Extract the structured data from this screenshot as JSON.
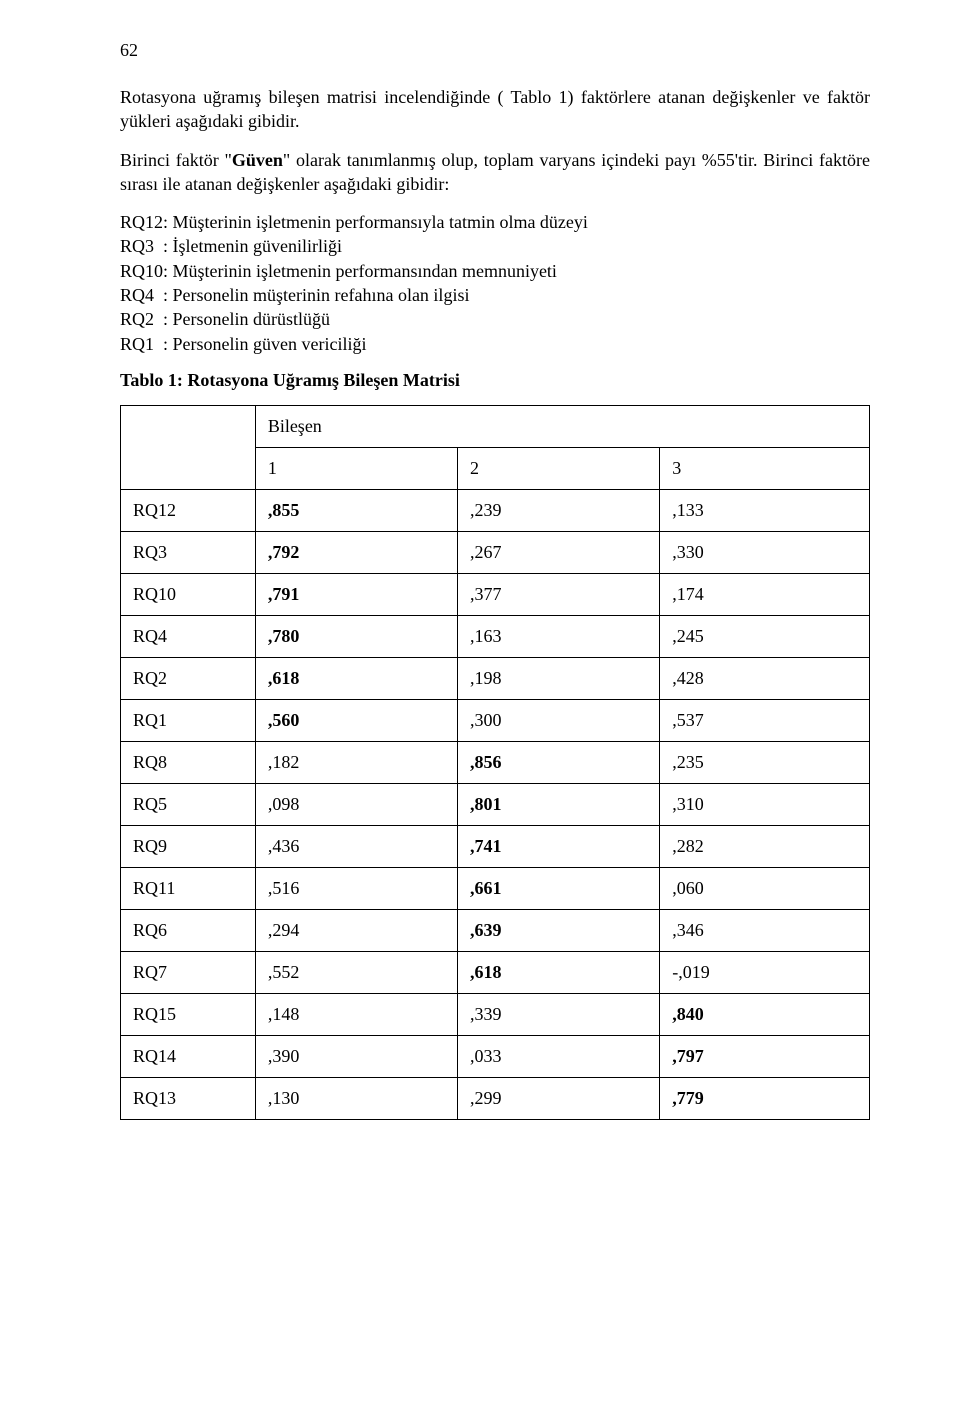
{
  "page_number": "62",
  "para1": "Rotasyona uğramış bileşen matrisi incelendiğinde ( Tablo 1) faktörlere atanan değişkenler ve faktör yükleri aşağıdaki gibidir.",
  "para2_pre": "Birinci faktör \"",
  "para2_bold": "Güven",
  "para2_post": "\" olarak tanımlanmış olup,  toplam varyans içindeki payı %55'tir. Birinci faktöre sırası ile atanan değişkenler aşağıdaki gibidir:",
  "list": {
    "l1": "RQ12: Müşterinin işletmenin performansıyla tatmin olma düzeyi",
    "l2": "RQ3  : İşletmenin güvenilirliği",
    "l3": "RQ10: Müşterinin işletmenin performansından memnuniyeti",
    "l4": "RQ4  : Personelin müşterinin refahına olan ilgisi",
    "l5": "RQ2  : Personelin dürüstlüğü",
    "l6": "RQ1  : Personelin güven vericiliği"
  },
  "table": {
    "title": "Tablo 1: Rotasyona Uğramış Bileşen Matrisi",
    "component_header": "Bileşen",
    "column_labels": [
      "1",
      "2",
      "3"
    ],
    "rows": [
      {
        "label": "RQ12",
        "v": [
          ",855",
          ",239",
          ",133"
        ]
      },
      {
        "label": "RQ3",
        "v": [
          ",792",
          ",267",
          ",330"
        ]
      },
      {
        "label": "RQ10",
        "v": [
          ",791",
          ",377",
          ",174"
        ]
      },
      {
        "label": "RQ4",
        "v": [
          ",780",
          ",163",
          ",245"
        ]
      },
      {
        "label": "RQ2",
        "v": [
          ",618",
          ",198",
          ",428"
        ]
      },
      {
        "label": "RQ1",
        "v": [
          ",560",
          ",300",
          ",537"
        ]
      },
      {
        "label": "RQ8",
        "v": [
          ",182",
          ",856",
          ",235"
        ]
      },
      {
        "label": "RQ5",
        "v": [
          ",098",
          ",801",
          ",310"
        ]
      },
      {
        "label": "RQ9",
        "v": [
          ",436",
          ",741",
          ",282"
        ]
      },
      {
        "label": "RQ11",
        "v": [
          ",516",
          ",661",
          ",060"
        ]
      },
      {
        "label": "RQ6",
        "v": [
          ",294",
          ",639",
          ",346"
        ]
      },
      {
        "label": "RQ7",
        "v": [
          ",552",
          ",618",
          "-,019"
        ]
      },
      {
        "label": "RQ15",
        "v": [
          ",148",
          ",339",
          ",840"
        ]
      },
      {
        "label": "RQ14",
        "v": [
          ",390",
          ",033",
          ",797"
        ]
      },
      {
        "label": "RQ13",
        "v": [
          ",130",
          ",299",
          ",779"
        ]
      }
    ],
    "bold_map": [
      [
        true,
        false,
        false
      ],
      [
        true,
        false,
        false
      ],
      [
        true,
        false,
        false
      ],
      [
        true,
        false,
        false
      ],
      [
        true,
        false,
        false
      ],
      [
        true,
        false,
        false
      ],
      [
        false,
        true,
        false
      ],
      [
        false,
        true,
        false
      ],
      [
        false,
        true,
        false
      ],
      [
        false,
        true,
        false
      ],
      [
        false,
        true,
        false
      ],
      [
        false,
        true,
        false
      ],
      [
        false,
        false,
        true
      ],
      [
        false,
        false,
        true
      ],
      [
        false,
        false,
        true
      ]
    ]
  },
  "colors": {
    "background": "#ffffff",
    "text": "#000000",
    "border": "#000000"
  },
  "typography": {
    "font_family": "Times New Roman",
    "body_fontsize_pt": 14,
    "title_fontsize_pt": 14
  }
}
